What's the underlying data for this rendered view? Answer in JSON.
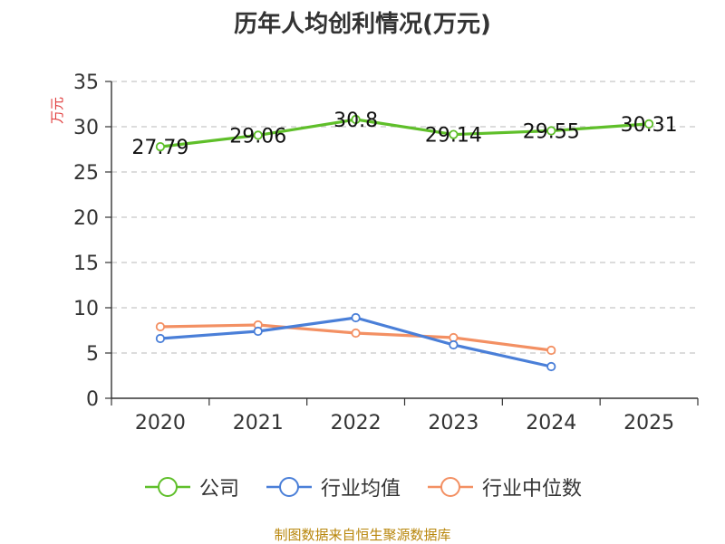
{
  "colors": {
    "company": "#5fbf2a",
    "industry_avg": "#4a7fd8",
    "industry_median": "#f39063",
    "axis": "#333333",
    "grid": "#c8c8c8",
    "ylabel": "#e03b3b",
    "footer": "#b8860b"
  },
  "chart_data": {
    "type": "line",
    "title": "历年人均创利情况(万元)",
    "ylabel": "万元",
    "xlabel": "",
    "categories": [
      "2020",
      "2021",
      "2022",
      "2023",
      "2024",
      "2025"
    ],
    "ylim": [
      0,
      35
    ],
    "yticks": [
      0,
      5,
      10,
      15,
      20,
      25,
      30,
      35
    ],
    "grid": true,
    "legend_position": "bottom",
    "series": [
      {
        "name": "公司",
        "key": "company",
        "values": [
          27.79,
          29.06,
          30.8,
          29.14,
          29.55,
          30.31
        ],
        "labels": [
          "27.79",
          "29.06",
          "30.8",
          "29.14",
          "29.55",
          "30.31"
        ]
      },
      {
        "name": "行业均值",
        "key": "industry_avg",
        "values": [
          6.6,
          7.4,
          8.9,
          5.9,
          3.5,
          null
        ]
      },
      {
        "name": "行业中位数",
        "key": "industry_median",
        "values": [
          7.9,
          8.1,
          7.2,
          6.7,
          5.3,
          null
        ]
      }
    ]
  },
  "footer": "制图数据来自恒生聚源数据库"
}
